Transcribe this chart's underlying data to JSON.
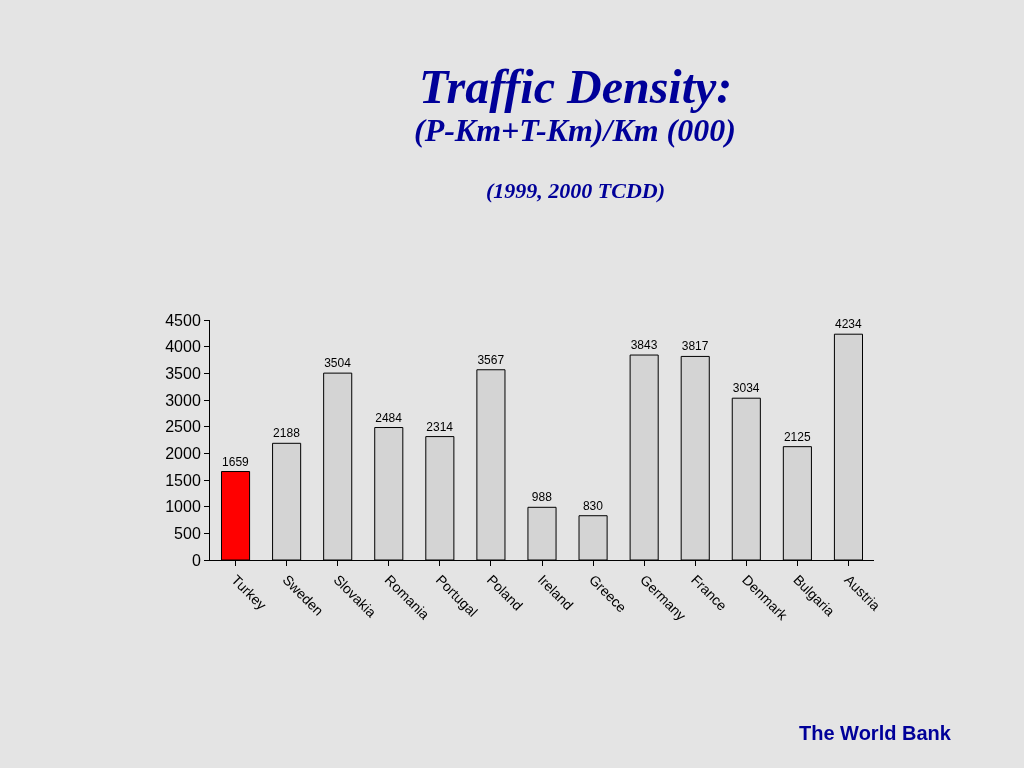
{
  "chart_data": {
    "type": "bar",
    "title": "Traffic Density:",
    "subtitle": "(P-Km+T-Km)/Km (000)",
    "annotations": [
      "(1999, 2000 TCDD)",
      "The World Bank"
    ],
    "categories": [
      "Turkey",
      "Sweden",
      "Slovakia",
      "Romania",
      "Portugal",
      "Poland",
      "Ireland",
      "Greece",
      "Germany",
      "France",
      "Denmark",
      "Bulgaria",
      "Austria"
    ],
    "values": [
      1659,
      2188,
      3504,
      2484,
      2314,
      3567,
      988,
      830,
      3843,
      3817,
      3034,
      2125,
      4234
    ],
    "colors": [
      "#ff0000",
      "#d4d4d4",
      "#d4d4d4",
      "#d4d4d4",
      "#d4d4d4",
      "#d4d4d4",
      "#d4d4d4",
      "#d4d4d4",
      "#d4d4d4",
      "#d4d4d4",
      "#d4d4d4",
      "#d4d4d4",
      "#d4d4d4"
    ],
    "ylim": [
      0,
      4500
    ],
    "yticks": [
      0,
      500,
      1000,
      1500,
      2000,
      2500,
      3000,
      3500,
      4000,
      4500
    ],
    "data_labels": true,
    "grid": false,
    "legend": false
  }
}
